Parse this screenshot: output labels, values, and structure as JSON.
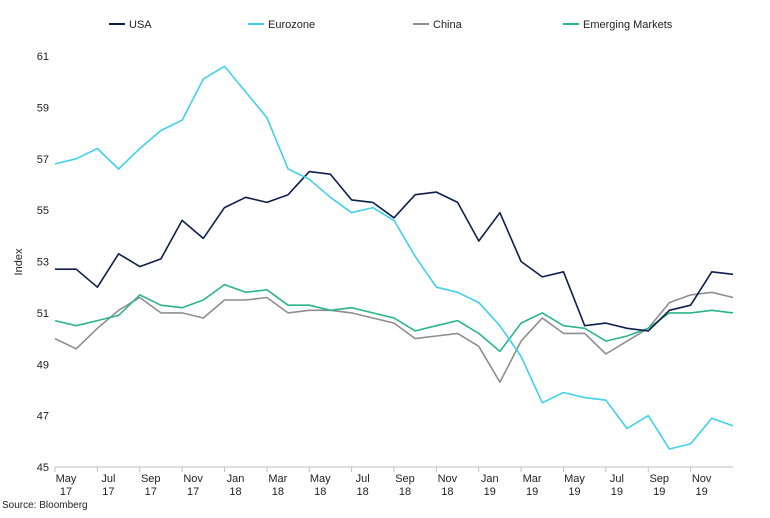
{
  "chart_data": {
    "type": "line",
    "title": "",
    "xlabel": "",
    "ylabel": "Index",
    "ylim": [
      45,
      62
    ],
    "yticks": [
      45,
      47,
      49,
      51,
      53,
      55,
      57,
      59,
      61
    ],
    "grid": false,
    "legend_position": "top",
    "source": "Source: Bloomberg",
    "x_tick_labels": [
      {
        "month": "May",
        "year": "17",
        "index": 0
      },
      {
        "month": "Jul",
        "year": "17",
        "index": 2
      },
      {
        "month": "Sep",
        "year": "17",
        "index": 4
      },
      {
        "month": "Nov",
        "year": "17",
        "index": 6
      },
      {
        "month": "Jan",
        "year": "18",
        "index": 8
      },
      {
        "month": "Mar",
        "year": "18",
        "index": 10
      },
      {
        "month": "May",
        "year": "18",
        "index": 12
      },
      {
        "month": "Jul",
        "year": "18",
        "index": 14
      },
      {
        "month": "Sep",
        "year": "18",
        "index": 16
      },
      {
        "month": "Nov",
        "year": "18",
        "index": 18
      },
      {
        "month": "Jan",
        "year": "19",
        "index": 20
      },
      {
        "month": "Mar",
        "year": "19",
        "index": 22
      },
      {
        "month": "May",
        "year": "19",
        "index": 24
      },
      {
        "month": "Jul",
        "year": "19",
        "index": 26
      },
      {
        "month": "Sep",
        "year": "19",
        "index": 28
      },
      {
        "month": "Nov",
        "year": "19",
        "index": 30
      }
    ],
    "series": [
      {
        "name": "USA",
        "color": "#0d1f4c",
        "values": [
          52.7,
          52.7,
          52.0,
          53.3,
          52.8,
          53.1,
          54.6,
          53.9,
          55.1,
          55.5,
          55.3,
          55.6,
          56.5,
          56.4,
          55.4,
          55.3,
          54.7,
          55.6,
          55.7,
          55.3,
          53.8,
          54.9,
          53.0,
          52.4,
          52.6,
          50.5,
          50.6,
          50.4,
          50.3,
          51.1,
          51.3,
          52.6,
          52.5
        ]
      },
      {
        "name": "Eurozone",
        "color": "#3fd1ec",
        "values": [
          56.8,
          57.0,
          57.4,
          56.6,
          57.4,
          58.1,
          58.5,
          60.1,
          60.6,
          59.6,
          58.6,
          56.6,
          56.2,
          55.5,
          54.9,
          55.1,
          54.6,
          53.2,
          52.0,
          51.8,
          51.4,
          50.5,
          49.3,
          47.5,
          47.9,
          47.7,
          47.6,
          46.5,
          47.0,
          45.7,
          45.9,
          46.9,
          46.6
        ]
      },
      {
        "name": "China",
        "color": "#8e8e8e",
        "values": [
          50.0,
          49.6,
          50.4,
          51.1,
          51.6,
          51.0,
          51.0,
          50.8,
          51.5,
          51.5,
          51.6,
          51.0,
          51.1,
          51.1,
          51.0,
          50.8,
          50.6,
          50.0,
          50.1,
          50.2,
          49.7,
          48.3,
          49.9,
          50.8,
          50.2,
          50.2,
          49.4,
          49.9,
          50.4,
          51.4,
          51.7,
          51.8,
          51.6
        ]
      },
      {
        "name": "Emerging Markets",
        "color": "#2bb58c",
        "values": [
          50.7,
          50.5,
          50.7,
          50.9,
          51.7,
          51.3,
          51.2,
          51.5,
          52.1,
          51.8,
          51.9,
          51.3,
          51.3,
          51.1,
          51.2,
          51.0,
          50.8,
          50.3,
          50.5,
          50.7,
          50.2,
          49.5,
          50.6,
          51.0,
          50.5,
          50.4,
          49.9,
          50.1,
          50.4,
          51.0,
          51.0,
          51.1,
          51.0
        ]
      }
    ]
  }
}
